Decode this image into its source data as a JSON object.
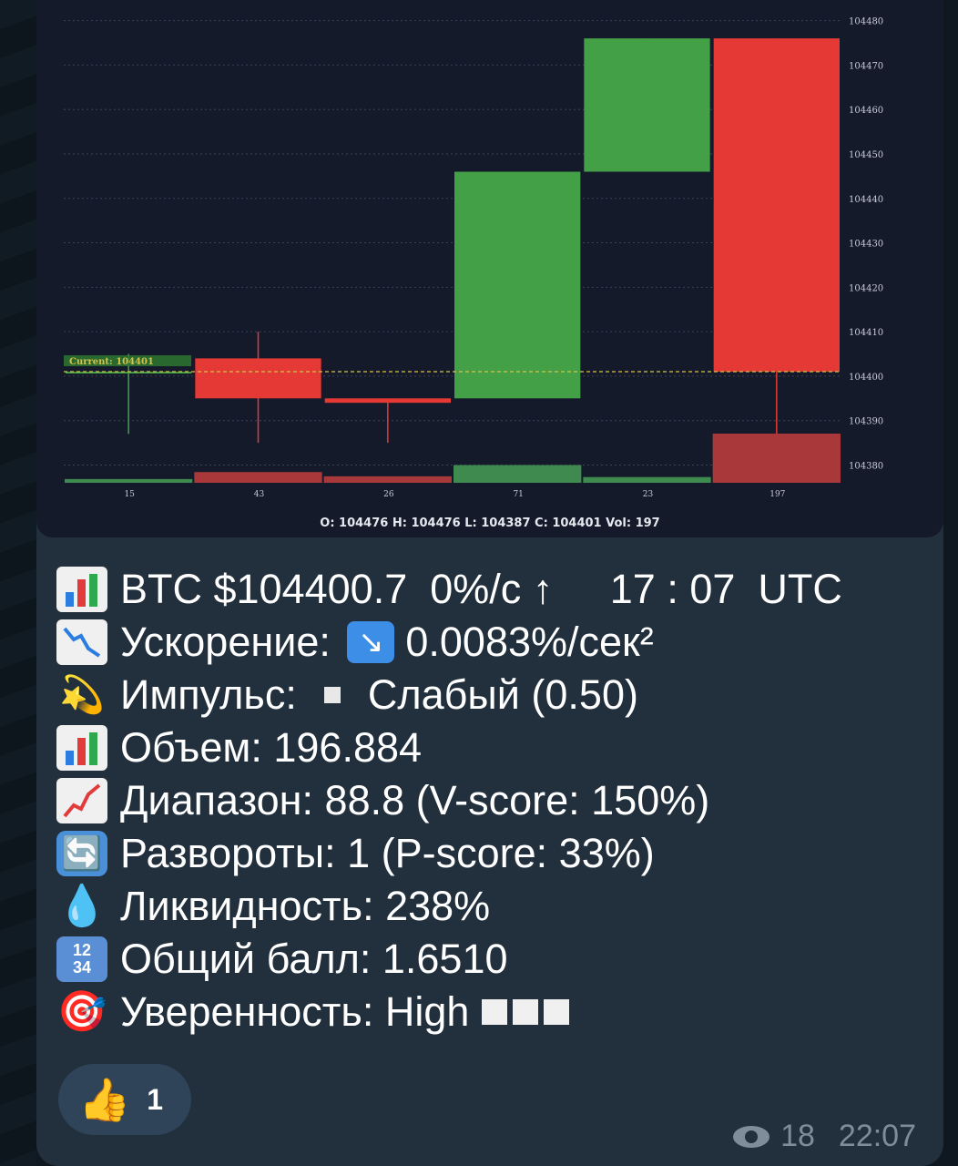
{
  "chart_data": {
    "type": "candlestick",
    "candles": [
      {
        "open": 104401,
        "close": 104401,
        "high": 104405,
        "low": 104387,
        "volume": 15,
        "direction": "up"
      },
      {
        "open": 104404,
        "close": 104395,
        "high": 104410,
        "low": 104385,
        "volume": 43,
        "direction": "down"
      },
      {
        "open": 104395,
        "close": 104394,
        "high": 104395,
        "low": 104385,
        "volume": 26,
        "direction": "down"
      },
      {
        "open": 104395,
        "close": 104446,
        "high": 104446,
        "low": 104395,
        "volume": 71,
        "direction": "up"
      },
      {
        "open": 104446,
        "close": 104476,
        "high": 104476,
        "low": 104446,
        "volume": 23,
        "direction": "up"
      },
      {
        "open": 104476,
        "close": 104401,
        "high": 104476,
        "low": 104387,
        "volume": 197,
        "direction": "down"
      }
    ],
    "volume_labels": [
      "15",
      "43",
      "26",
      "71",
      "23",
      "197"
    ],
    "y_ticks": [
      "104480",
      "104470",
      "104460",
      "104450",
      "104440",
      "104430",
      "104420",
      "104410",
      "104400",
      "104390",
      "104380"
    ],
    "ylim": [
      104376,
      104483
    ],
    "current_label": "Current: 104401",
    "current_value": 104401,
    "ohlc_footer": "O: 104476  H: 104476  L: 104387  C: 104401  Vol: 197",
    "colors": {
      "up": "#43a047",
      "down": "#e53935",
      "background": "#141a2a",
      "grid": "#3a4256",
      "current": "#d4c24a"
    }
  },
  "message": {
    "line1": {
      "text": "BTC $104400.7  0%/с ↑     17 : 07  UTC"
    },
    "line2": {
      "label": "Ускорение: ",
      "arrow": "↘",
      "value": "0.0083%/сек²"
    },
    "line3": {
      "label": "Импульс:",
      "value": "Слабый (0.50)"
    },
    "line4": {
      "text": "Объем: 196.884"
    },
    "line5": {
      "text": "Диапазон: 88.8 (V-score: 150%)"
    },
    "line6": {
      "text": "Развороты: 1 (P-score: 33%)"
    },
    "line7": {
      "text": "Ликвидность: 238%"
    },
    "line8": {
      "text": "Общий балл: 1.6510"
    },
    "line9": {
      "text": "Уверенность: High"
    },
    "icons": [
      "bar-chart-icon",
      "chart-decreasing-icon",
      "dizzy-star-icon",
      "bar-chart-icon",
      "chart-increasing-icon",
      "cycle-arrows-icon",
      "droplet-icon",
      "input-numbers-icon",
      "direct-hit-icon"
    ],
    "nums_icon_top": "12",
    "nums_icon_bottom": "34"
  },
  "reaction": {
    "emoji": "👍",
    "count": "1"
  },
  "meta": {
    "views": "18",
    "time": "22:07"
  }
}
